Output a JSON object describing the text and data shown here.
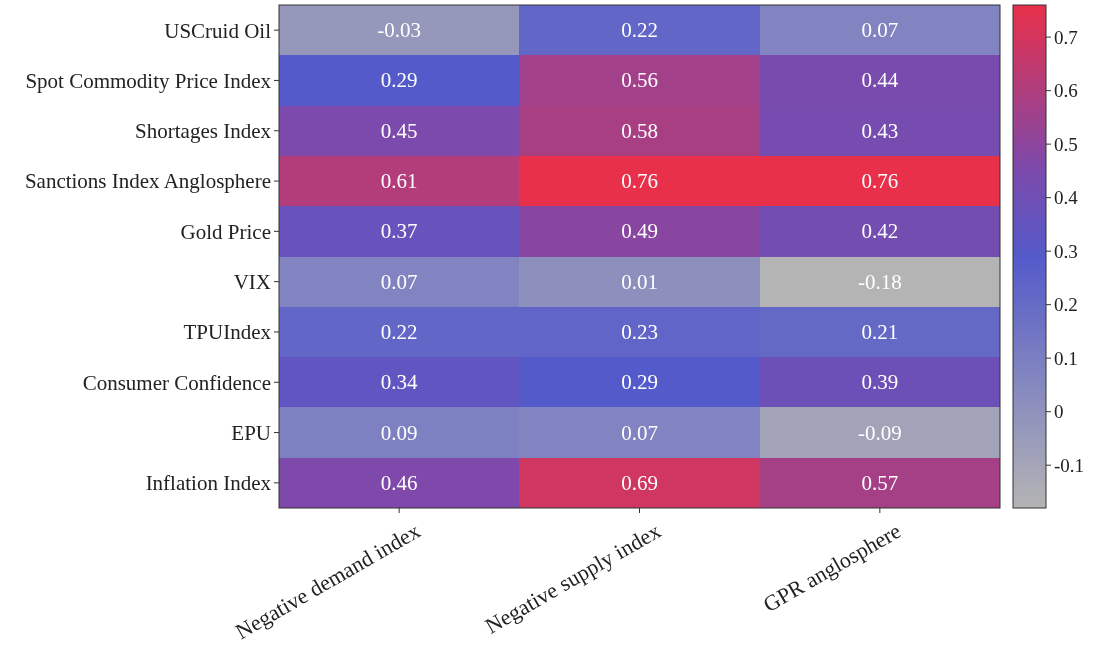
{
  "chart_data": {
    "type": "heatmap",
    "categories": [
      "Negative demand index",
      "Negative supply index",
      "GPR anglosphere"
    ],
    "y_categories": [
      "USCruid Oil",
      "Spot Commodity Price Index",
      "Shortages Index",
      "Sanctions Index Anglosphere",
      "Gold Price",
      "VIX",
      "TPUIndex",
      "Consumer Confidence",
      "EPU",
      "Inflation Index"
    ],
    "cells": [
      [
        -0.03,
        0.22,
        0.07
      ],
      [
        0.29,
        0.56,
        0.44
      ],
      [
        0.45,
        0.58,
        0.43
      ],
      [
        0.61,
        0.76,
        0.76
      ],
      [
        0.37,
        0.49,
        0.42
      ],
      [
        0.07,
        0.01,
        -0.18
      ],
      [
        0.22,
        0.23,
        0.21
      ],
      [
        0.34,
        0.29,
        0.39
      ],
      [
        0.09,
        0.07,
        -0.09
      ],
      [
        0.46,
        0.69,
        0.57
      ]
    ],
    "data_labels": true,
    "clim": [
      -0.18,
      0.76
    ],
    "cticks": [
      {
        "value": -0.1,
        "label": "-0.1"
      },
      0,
      0.1,
      0.2,
      0.3,
      0.4,
      0.5,
      0.6,
      0.7
    ]
  }
}
